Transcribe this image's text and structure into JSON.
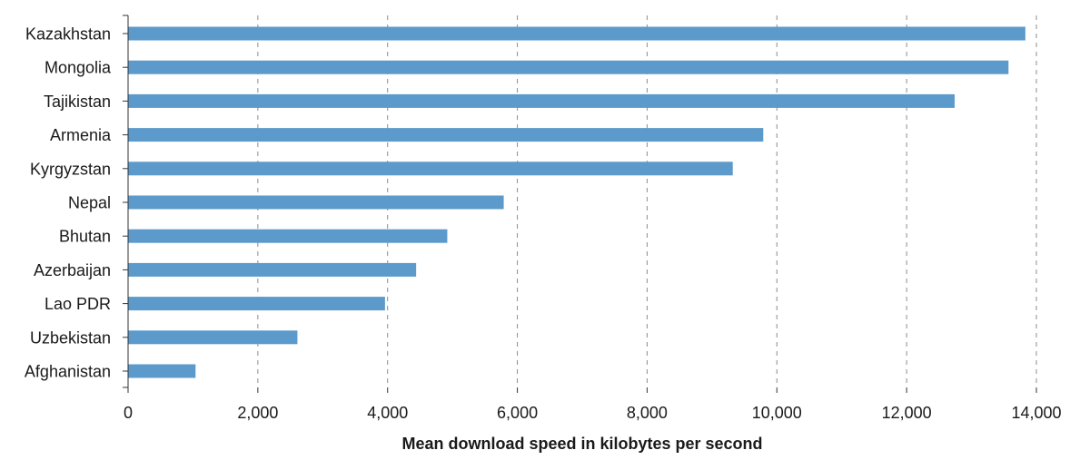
{
  "chart_data": {
    "type": "bar",
    "orientation": "horizontal",
    "title": "",
    "xlabel": "Mean download speed in kilobytes per second",
    "ylabel": "",
    "categories": [
      "Kazakhstan",
      "Mongolia",
      "Tajikistan",
      "Armenia",
      "Kyrgyzstan",
      "Nepal",
      "Bhutan",
      "Azerbaijan",
      "Lao PDR",
      "Uzbekistan",
      "Afghanistan"
    ],
    "values": [
      13830,
      13570,
      12740,
      9790,
      9320,
      5790,
      4920,
      4440,
      3960,
      2610,
      1040
    ],
    "xlim": [
      0,
      14000
    ],
    "xticks": [
      0,
      2000,
      4000,
      6000,
      8000,
      10000,
      12000,
      14000
    ],
    "xtick_labels": [
      "0",
      "2,000",
      "4,000",
      "6,000",
      "8,000",
      "10,000",
      "12,000",
      "14,000"
    ],
    "grid": "vertical-dashed",
    "legend": "none",
    "bar_color": "#5b9aca",
    "grid_color": "#8c8c8c",
    "axis_color": "#333333"
  }
}
